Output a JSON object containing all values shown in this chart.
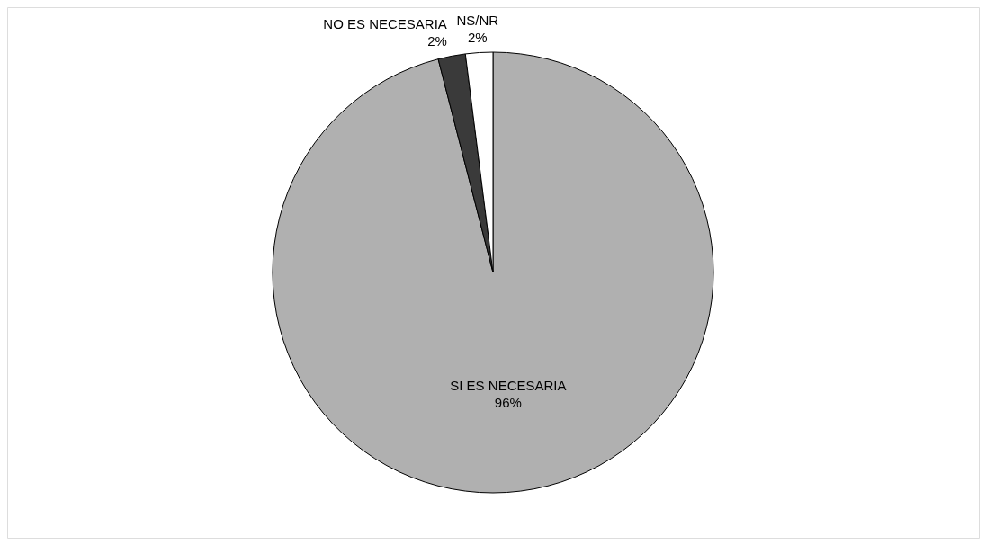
{
  "chart_data": {
    "type": "pie",
    "categories": [
      "SI ES NECESARIA",
      "NO ES NECESARIA",
      "NS/NR"
    ],
    "values": [
      96,
      2,
      2
    ],
    "value_labels": [
      "96%",
      "2%",
      "2%"
    ],
    "colors": [
      "#b0b0b0",
      "#3a3a3a",
      "#ffffff"
    ]
  }
}
